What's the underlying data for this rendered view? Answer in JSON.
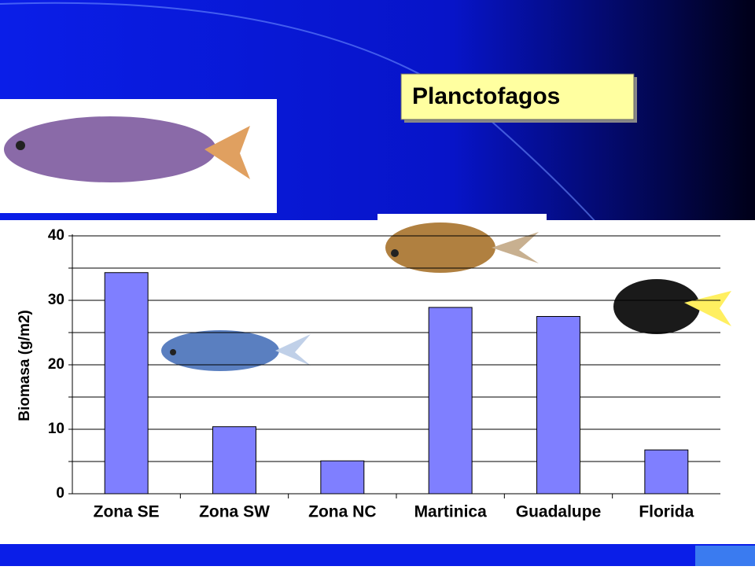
{
  "chart_data": {
    "type": "bar",
    "title": "Planctofagos",
    "y_label": "Biomasa (g/m2)",
    "categories": [
      "Zona SE",
      "Zona SW",
      "Zona NC",
      "Martinica",
      "Guadalupe",
      "Florida"
    ],
    "values": [
      34.3,
      10.4,
      5.1,
      28.9,
      27.5,
      6.8
    ],
    "color": "#7f7fff",
    "ylim": [
      0,
      40
    ],
    "yticks": [
      0,
      10,
      20,
      30,
      40
    ],
    "minor_yticks": [
      5,
      15,
      25,
      35
    ],
    "grid": true
  }
}
